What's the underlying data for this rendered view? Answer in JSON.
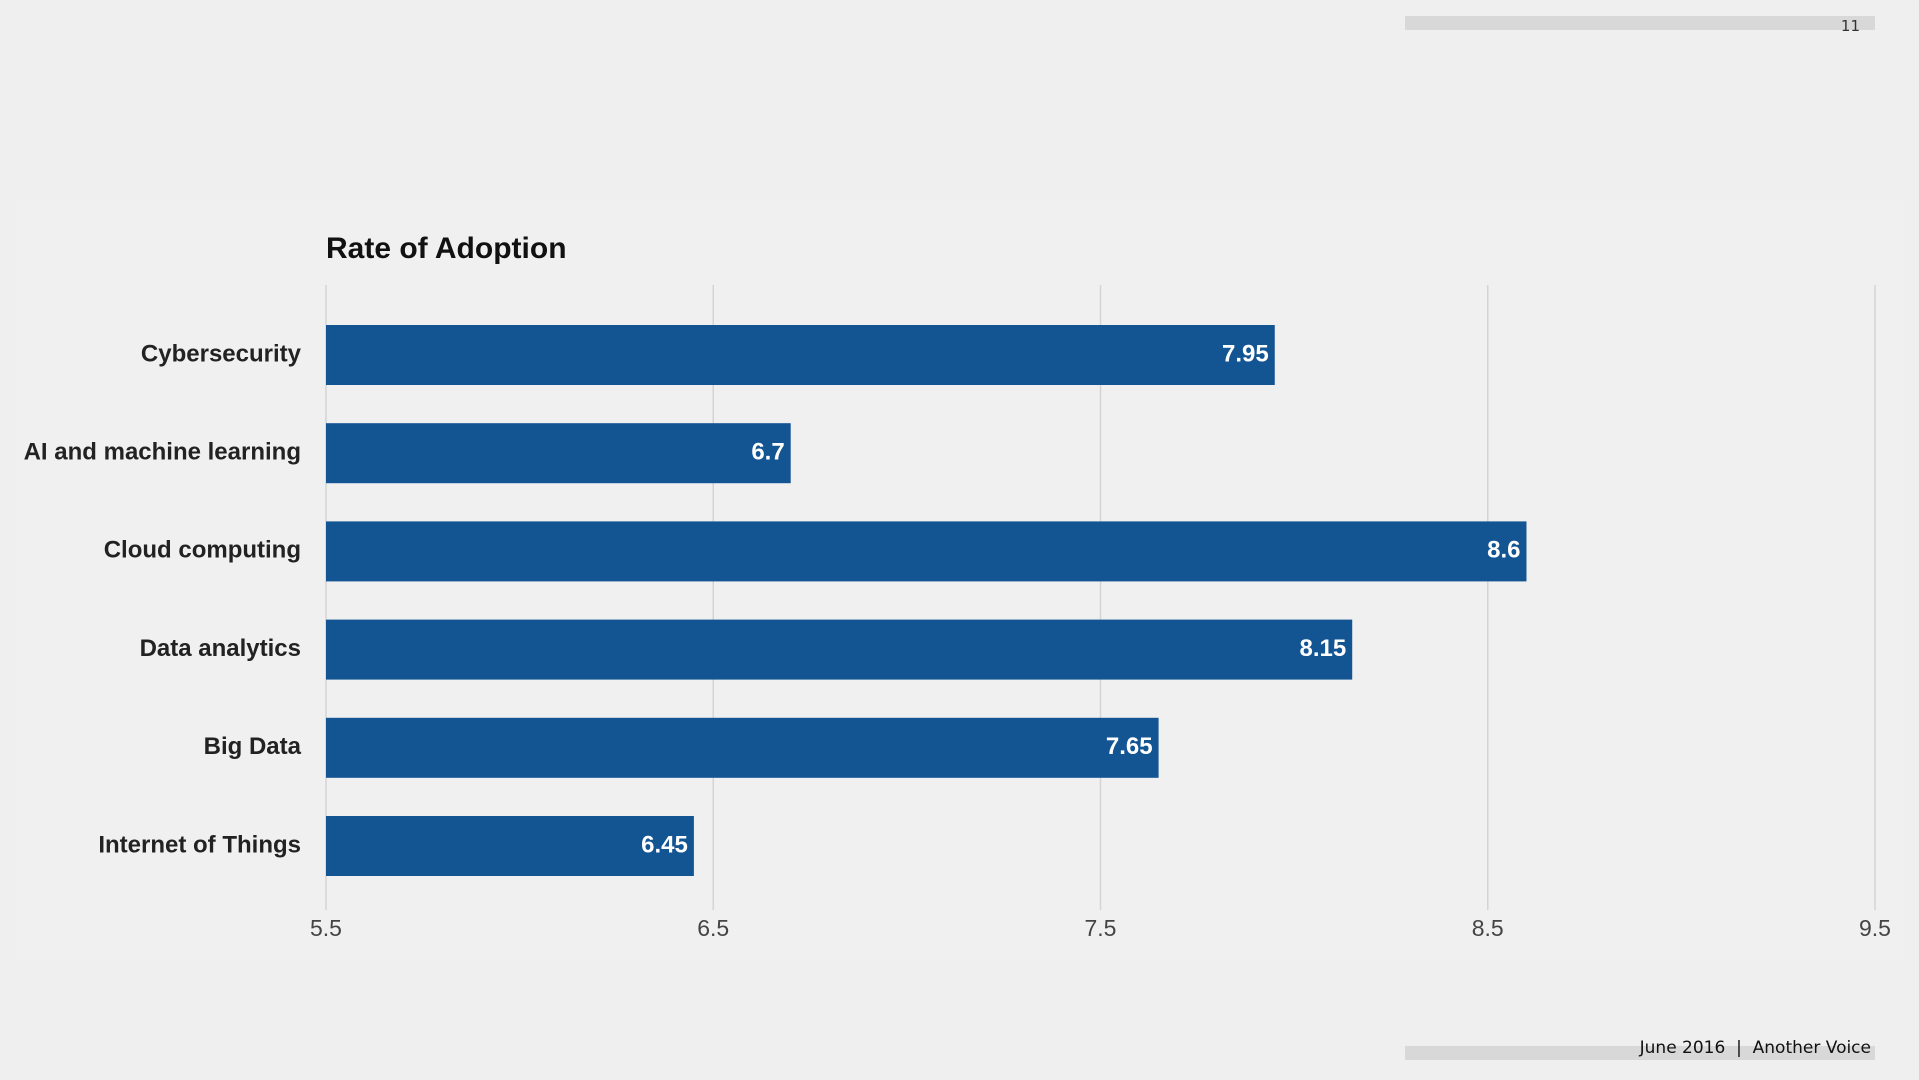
{
  "page": {
    "number": "11",
    "footer": "June 2016  |  Another Voice"
  },
  "colors": {
    "bar": "#135493",
    "gridline": "#d4d4d4",
    "background": "#efefef",
    "strip": "#d8d8d8"
  },
  "chart_data": {
    "type": "bar",
    "orientation": "horizontal",
    "title": "Rate of Adoption",
    "xlabel": "",
    "ylabel": "",
    "categories": [
      "Cybersecurity",
      "AI and machine learning",
      "Cloud computing",
      "Data analytics",
      "Big Data",
      "Internet of Things"
    ],
    "values": [
      7.95,
      6.7,
      8.6,
      8.15,
      7.65,
      6.45
    ],
    "value_labels": [
      "7.95",
      "6.7",
      "8.6",
      "8.15",
      "7.65",
      "6.45"
    ],
    "xlim": [
      5.5,
      9.5
    ],
    "ticks": [
      5.5,
      6.5,
      7.5,
      8.5,
      9.5
    ],
    "tick_labels": [
      "5.5",
      "6.5",
      "7.5",
      "8.5",
      "9.5"
    ],
    "grid": true,
    "legend": "none"
  }
}
